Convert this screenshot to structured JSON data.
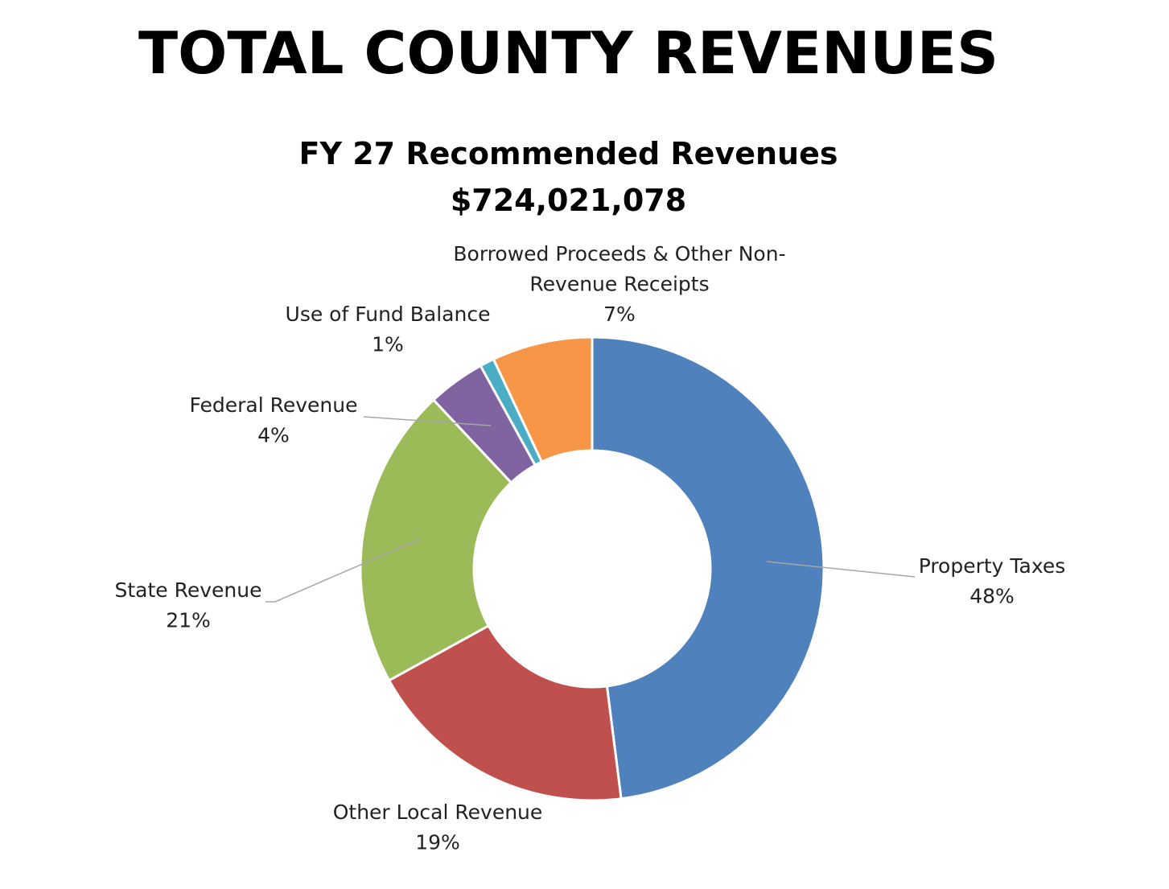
{
  "page_title": "TOTAL COUNTY REVENUES",
  "chart_data": {
    "type": "pie",
    "title": "FY 27 Recommended Revenues",
    "subtitle": "$724,021,078",
    "style": "donut",
    "categories": [
      "Property Taxes",
      "Other Local Revenue",
      "State Revenue",
      "Federal Revenue",
      "Use of Fund Balance",
      "Borrowed Proceeds & Other Non-Revenue Receipts"
    ],
    "values": [
      48,
      19,
      21,
      4,
      1,
      7
    ],
    "value_labels": [
      "48%",
      "19%",
      "21%",
      "4%",
      "1%",
      "7%"
    ],
    "label_lines": {
      "Property Taxes": [
        "Property Taxes"
      ],
      "Other Local Revenue": [
        "Other Local Revenue"
      ],
      "State Revenue": [
        "State Revenue"
      ],
      "Federal Revenue": [
        "Federal Revenue"
      ],
      "Use of Fund Balance": [
        "Use of Fund Balance"
      ],
      "Borrowed Proceeds & Other Non-Revenue Receipts": [
        "Borrowed Proceeds & Other Non-",
        "Revenue Receipts"
      ]
    },
    "colors": [
      "#4F81BD",
      "#C0504D",
      "#9BBB59",
      "#8064A2",
      "#4BACC6",
      "#F79646"
    ],
    "legend": "none"
  }
}
